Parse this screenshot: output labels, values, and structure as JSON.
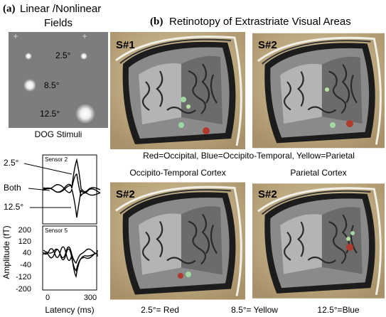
{
  "panel_a": {
    "label": "(a)",
    "title_line1": "Linear /Nonlinear",
    "title_line2": "Fields",
    "stimuli": [
      "2.5°",
      "8.5°",
      "12.5°"
    ],
    "stimuli_caption": "DOG Stimuli",
    "sensor_2": {
      "title": "Sensor 2",
      "annotations": [
        "2.5°",
        "Both",
        "12.5°"
      ]
    },
    "sensor_5": {
      "title": "Sensor 5",
      "yticks": [
        200,
        120,
        40,
        -40,
        -120,
        -200
      ],
      "xticks": [
        0,
        300
      ],
      "ylabel": "Amplitude (fT)",
      "xlabel": "Latency (ms)"
    }
  },
  "panel_b": {
    "label": "(b)",
    "title": "Retinotopy of Extrastriate Visual Areas",
    "images": [
      "S#1",
      "S#2",
      "S#2",
      "S#2"
    ],
    "legend": "Red=Occipital, Blue=Occipito-Temporal, Yellow=Parietal",
    "row_titles": [
      "Occipito-Temporal Cortex",
      "Parietal Cortex"
    ],
    "key": [
      "2.5°= Red",
      "8.5°= Yellow",
      "12.5°=Blue"
    ]
  }
}
